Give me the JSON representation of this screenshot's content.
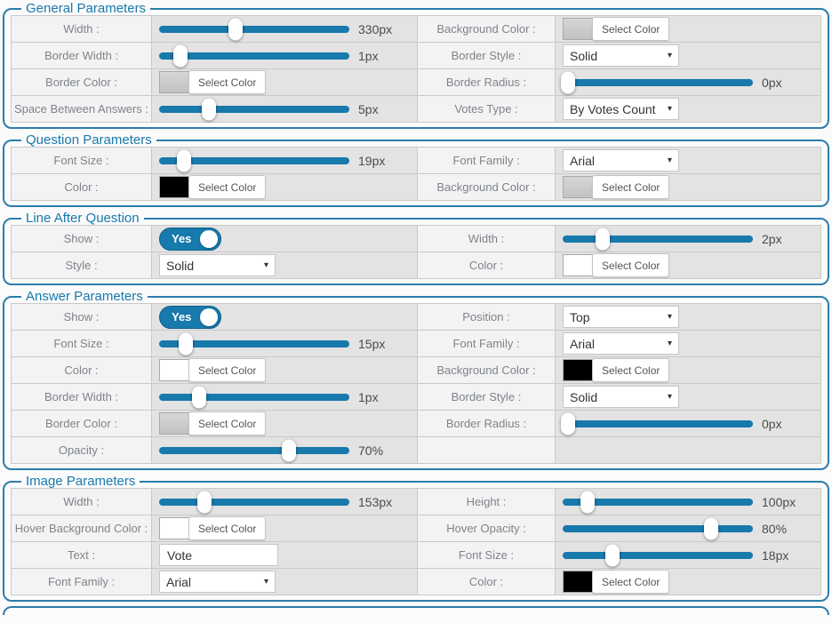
{
  "ui": {
    "select_color_label": "Select Color",
    "select_arrow_icon": "▾"
  },
  "colors": {
    "accent": "#1779ac",
    "panel_border": "#2d7cab",
    "gray": "#c9c9c9",
    "black": "#000000",
    "white": "#ffffff"
  },
  "sections": [
    {
      "title": "General Parameters",
      "rows": [
        {
          "left": {
            "label": "Width :",
            "control": {
              "type": "slider",
              "value": "330px",
              "pos": 40
            }
          },
          "right": {
            "label": "Background Color :",
            "control": {
              "type": "color",
              "swatch": "gray"
            }
          }
        },
        {
          "left": {
            "label": "Border Width :",
            "control": {
              "type": "slider",
              "value": "1px",
              "pos": 11
            }
          },
          "right": {
            "label": "Border Style :",
            "control": {
              "type": "select",
              "value": "Solid"
            }
          }
        },
        {
          "left": {
            "label": "Border Color :",
            "control": {
              "type": "color",
              "swatch": "gray"
            }
          },
          "right": {
            "label": "Border Radius :",
            "control": {
              "type": "slider",
              "value": "0px",
              "pos": 3
            }
          }
        },
        {
          "left": {
            "label": "Space Between Answers :",
            "control": {
              "type": "slider",
              "value": "5px",
              "pos": 26
            }
          },
          "right": {
            "label": "Votes Type :",
            "control": {
              "type": "select",
              "value": "By Votes Count"
            }
          }
        }
      ]
    },
    {
      "title": "Question Parameters",
      "rows": [
        {
          "left": {
            "label": "Font Size :",
            "control": {
              "type": "slider",
              "value": "19px",
              "pos": 13
            }
          },
          "right": {
            "label": "Font Family :",
            "control": {
              "type": "select",
              "value": "Arial"
            }
          }
        },
        {
          "left": {
            "label": "Color :",
            "control": {
              "type": "color",
              "swatch": "black"
            }
          },
          "right": {
            "label": "Background Color :",
            "control": {
              "type": "color",
              "swatch": "gray"
            }
          }
        }
      ]
    },
    {
      "title": "Line After Question",
      "rows": [
        {
          "left": {
            "label": "Show :",
            "control": {
              "type": "toggle",
              "label": "Yes",
              "on": true
            }
          },
          "right": {
            "label": "Width :",
            "control": {
              "type": "slider",
              "value": "2px",
              "pos": 21
            }
          }
        },
        {
          "left": {
            "label": "Style :",
            "control": {
              "type": "select",
              "value": "Solid"
            }
          },
          "right": {
            "label": "Color :",
            "control": {
              "type": "color",
              "swatch": "white"
            }
          }
        }
      ]
    },
    {
      "title": "Answer Parameters",
      "rows": [
        {
          "left": {
            "label": "Show :",
            "control": {
              "type": "toggle",
              "label": "Yes",
              "on": true
            }
          },
          "right": {
            "label": "Position :",
            "control": {
              "type": "select",
              "value": "Top"
            }
          }
        },
        {
          "left": {
            "label": "Font Size :",
            "control": {
              "type": "slider",
              "value": "15px",
              "pos": 14
            }
          },
          "right": {
            "label": "Font Family :",
            "control": {
              "type": "select",
              "value": "Arial"
            }
          }
        },
        {
          "left": {
            "label": "Color :",
            "control": {
              "type": "color",
              "swatch": "white"
            }
          },
          "right": {
            "label": "Background Color :",
            "control": {
              "type": "color",
              "swatch": "black"
            }
          }
        },
        {
          "left": {
            "label": "Border Width :",
            "control": {
              "type": "slider",
              "value": "1px",
              "pos": 21
            }
          },
          "right": {
            "label": "Border Style :",
            "control": {
              "type": "select",
              "value": "Solid"
            }
          }
        },
        {
          "left": {
            "label": "Border Color :",
            "control": {
              "type": "color",
              "swatch": "gray"
            }
          },
          "right": {
            "label": "Border Radius :",
            "control": {
              "type": "slider",
              "value": "0px",
              "pos": 3
            }
          }
        },
        {
          "left": {
            "label": "Opacity :",
            "control": {
              "type": "slider",
              "value": "70%",
              "pos": 68
            }
          },
          "right": {
            "label": "",
            "control": {
              "type": "empty"
            }
          }
        }
      ]
    },
    {
      "title": "Image Parameters",
      "rows": [
        {
          "left": {
            "label": "Width :",
            "control": {
              "type": "slider",
              "value": "153px",
              "pos": 24
            }
          },
          "right": {
            "label": "Height :",
            "control": {
              "type": "slider",
              "value": "100px",
              "pos": 13
            }
          }
        },
        {
          "left": {
            "label": "Hover Background Color :",
            "control": {
              "type": "color",
              "swatch": "white"
            }
          },
          "right": {
            "label": "Hover Opacity :",
            "control": {
              "type": "slider",
              "value": "80%",
              "pos": 78
            }
          }
        },
        {
          "left": {
            "label": "Text :",
            "control": {
              "type": "text",
              "value": "Vote"
            }
          },
          "right": {
            "label": "Font Size :",
            "control": {
              "type": "slider",
              "value": "18px",
              "pos": 26
            }
          }
        },
        {
          "left": {
            "label": "Font Family :",
            "control": {
              "type": "select",
              "value": "Arial"
            }
          },
          "right": {
            "label": "Color :",
            "control": {
              "type": "color",
              "swatch": "black"
            }
          }
        }
      ]
    }
  ]
}
